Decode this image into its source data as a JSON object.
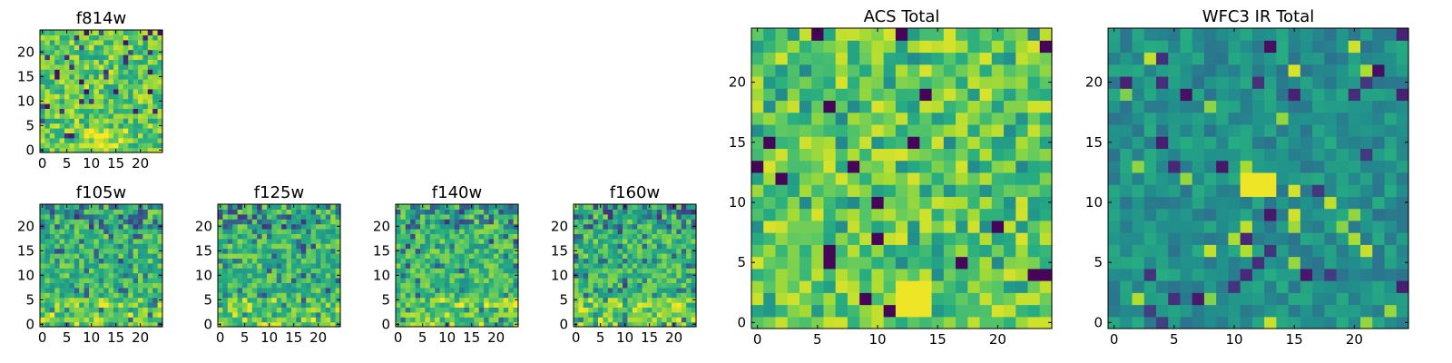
{
  "figure": {
    "description_free": true
  },
  "chart_data": [
    {
      "type": "heatmap",
      "title": "f814w",
      "grid_size": 25,
      "xlim": [
        0,
        25
      ],
      "ylim": [
        0,
        25
      ],
      "xticks": [
        0,
        5,
        10,
        15,
        20
      ],
      "yticks": [
        0,
        5,
        10,
        15,
        20
      ],
      "colormap": "viridis",
      "seed": 814,
      "texture": "pixel-noise"
    },
    {
      "type": "heatmap",
      "title": "f105w",
      "grid_size": 25,
      "xlim": [
        0,
        25
      ],
      "ylim": [
        0,
        25
      ],
      "xticks": [
        0,
        5,
        10,
        15,
        20
      ],
      "yticks": [
        0,
        5,
        10,
        15,
        20
      ],
      "colormap": "viridis",
      "seed": 105,
      "texture": "blocky"
    },
    {
      "type": "heatmap",
      "title": "f125w",
      "grid_size": 25,
      "xlim": [
        0,
        25
      ],
      "ylim": [
        0,
        25
      ],
      "xticks": [
        0,
        5,
        10,
        15,
        20
      ],
      "yticks": [
        0,
        5,
        10,
        15,
        20
      ],
      "colormap": "viridis",
      "seed": 125,
      "texture": "blocky"
    },
    {
      "type": "heatmap",
      "title": "f140w",
      "grid_size": 25,
      "xlim": [
        0,
        25
      ],
      "ylim": [
        0,
        25
      ],
      "xticks": [
        0,
        5,
        10,
        15,
        20
      ],
      "yticks": [
        0,
        5,
        10,
        15,
        20
      ],
      "colormap": "viridis",
      "seed": 140,
      "texture": "blocky"
    },
    {
      "type": "heatmap",
      "title": "f160w",
      "grid_size": 25,
      "xlim": [
        0,
        25
      ],
      "ylim": [
        0,
        25
      ],
      "xticks": [
        0,
        5,
        10,
        15,
        20
      ],
      "yticks": [
        0,
        5,
        10,
        15,
        20
      ],
      "colormap": "viridis",
      "seed": 160,
      "texture": "blocky"
    },
    {
      "type": "heatmap",
      "title": "ACS Total",
      "grid_size": 25,
      "xlim": [
        0,
        25
      ],
      "ylim": [
        0,
        25
      ],
      "xticks": [
        0,
        5,
        10,
        15,
        20
      ],
      "yticks": [
        0,
        5,
        10,
        15,
        20
      ],
      "colormap": "viridis",
      "seed": 7,
      "texture": "bright-noise",
      "bright_patch": {
        "x_range": [
          12,
          14
        ],
        "y_range": [
          1,
          3
        ]
      }
    },
    {
      "type": "heatmap",
      "title": "WFC3 IR Total",
      "grid_size": 25,
      "xlim": [
        0,
        25
      ],
      "ylim": [
        0,
        25
      ],
      "xticks": [
        0,
        5,
        10,
        15,
        20
      ],
      "yticks": [
        0,
        5,
        10,
        15,
        20
      ],
      "colormap": "viridis",
      "seed": 31,
      "texture": "dark-noise",
      "bright_patch": {
        "x_range": [
          11,
          13
        ],
        "y_range": [
          11,
          12
        ]
      }
    }
  ]
}
